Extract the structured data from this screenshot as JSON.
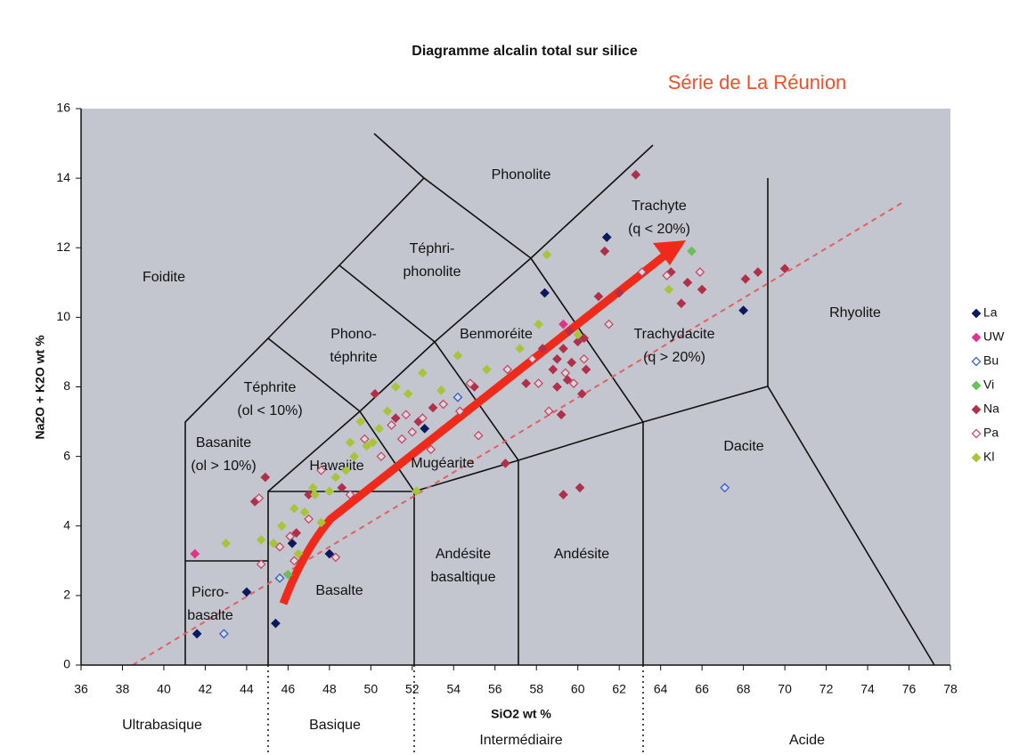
{
  "chart_data": {
    "type": "scatter",
    "title": "Diagramme alcalin total sur silice",
    "subtitle": "Série de La Réunion",
    "x_label": "SiO2 wt %",
    "y_label": "Na2O + K2O wt %",
    "xlim": [
      36,
      78
    ],
    "ylim": [
      0,
      16
    ],
    "xticks": [
      36,
      38,
      40,
      42,
      44,
      46,
      48,
      50,
      52,
      54,
      56,
      58,
      60,
      62,
      64,
      66,
      68,
      70,
      72,
      74,
      76,
      78
    ],
    "yticks": [
      0,
      2,
      4,
      6,
      8,
      10,
      12,
      14,
      16
    ],
    "grid": false,
    "legend": "right",
    "region_labels": [
      [
        "Foidite"
      ],
      [
        "Téphri-",
        "phonolite"
      ],
      [
        "Phonolite"
      ],
      [
        "Trachyte",
        "(q < 20%)"
      ],
      [
        "Phono-",
        "téphrite"
      ],
      [
        "Benmoréite"
      ],
      [
        "Trachydacite",
        "(q > 20%)"
      ],
      [
        "Rhyolite"
      ],
      [
        "Téphrite",
        "(ol < 10%)"
      ],
      [
        "Basanite",
        "(ol > 10%)"
      ],
      [
        "Hawaiite"
      ],
      [
        "Mugéarite"
      ],
      [
        "Dacite"
      ],
      [
        "Andésite",
        "basaltique"
      ],
      [
        "Andésite"
      ],
      [
        "Basalte"
      ],
      [
        "Picro-",
        "basalte"
      ]
    ],
    "class_labels": [
      "Ultrabasique",
      "Basique",
      "Intermédiaire",
      "Acide"
    ],
    "series": [
      {
        "name": "La",
        "color": "#0b1a5c",
        "filled": true,
        "x": [
          41.6,
          44,
          45.4,
          46.2,
          48,
          52.6,
          58.4,
          61.4,
          68
        ],
        "values": [
          0.9,
          2.1,
          1.2,
          3.5,
          3.2,
          6.8,
          10.7,
          12.3,
          10.2
        ]
      },
      {
        "name": "UW",
        "color": "#e0338a",
        "filled": true,
        "x": [
          41.5,
          59.3
        ],
        "values": [
          3.2,
          9.8
        ]
      },
      {
        "name": "Bu",
        "color": "#2a56c8",
        "filled": false,
        "x": [
          42.9,
          45.6,
          54.2,
          67.1
        ],
        "values": [
          0.9,
          2.5,
          7.7,
          5.1
        ]
      },
      {
        "name": "Vi",
        "color": "#6bbf59",
        "filled": true,
        "x": [
          65.5,
          46
        ],
        "values": [
          11.9,
          2.6
        ]
      },
      {
        "name": "Na",
        "color": "#b0304a",
        "filled": true,
        "x": [
          44.4,
          44.9,
          46.4,
          47,
          48.6,
          50.2,
          51.2,
          52.3,
          53,
          55,
          57.5,
          58.3,
          58.8,
          59,
          59.3,
          59.5,
          59.7,
          60,
          60.2,
          60.4,
          59,
          59.6,
          61,
          62,
          64.5,
          65,
          65.3,
          66,
          68.1,
          68.7,
          70,
          62.8,
          61.3,
          60.3,
          59.2,
          59.3,
          60.1,
          56.5
        ],
        "values": [
          4.7,
          5.4,
          3.8,
          4.9,
          5.1,
          7.8,
          7.1,
          7,
          7.4,
          8,
          8.1,
          9.1,
          8.5,
          8.8,
          9.1,
          8.2,
          8.7,
          9.3,
          7.8,
          8.5,
          8,
          9.6,
          10.6,
          10.7,
          11.3,
          10.4,
          11,
          10.8,
          11.1,
          11.3,
          11.4,
          14.1,
          11.9,
          9.4,
          7.2,
          4.9,
          5.1,
          5.8
        ]
      },
      {
        "name": "Pa",
        "color": "#c8405c",
        "filled": false,
        "x": [
          44.6,
          44.7,
          45.6,
          46.1,
          46.3,
          47,
          48.3,
          49,
          49.7,
          50.5,
          51,
          51.5,
          52,
          52.5,
          52.9,
          53.5,
          54.3,
          54.8,
          56.6,
          57.8,
          58.1,
          58.6,
          59.4,
          59.8,
          60.3,
          61.5,
          63.1,
          64.3,
          65.9,
          55.2,
          51.7,
          47.6
        ],
        "values": [
          4.8,
          2.9,
          3.4,
          3.7,
          3,
          4.2,
          3.1,
          4.9,
          6.5,
          6,
          6.9,
          6.5,
          6.7,
          7.1,
          6.2,
          7.5,
          7.3,
          8.1,
          8.5,
          8.8,
          8.1,
          7.3,
          8.4,
          8.1,
          8.8,
          9.8,
          11.3,
          11.2,
          11.3,
          6.6,
          7.2,
          5.6
        ]
      },
      {
        "name": "Kl",
        "color": "#a8c43a",
        "filled": true,
        "x": [
          43,
          44.7,
          45.3,
          45.7,
          46.3,
          46.8,
          47.2,
          47.6,
          48,
          48.3,
          48.8,
          49.2,
          49.5,
          49.8,
          50.1,
          50.4,
          50.8,
          51.2,
          51.8,
          52.5,
          53.4,
          54.2,
          55.6,
          57.2,
          58.1,
          58.5,
          60,
          64.4,
          46.5,
          47.3,
          49,
          52.2
        ],
        "values": [
          3.5,
          3.6,
          3.5,
          4,
          4.5,
          4.4,
          5.1,
          4.1,
          5,
          5.4,
          5.6,
          6,
          7,
          6.3,
          6.4,
          6.8,
          7.3,
          8,
          7.8,
          8.4,
          7.9,
          8.9,
          8.5,
          9.1,
          9.8,
          11.8,
          9.5,
          10.8,
          3.2,
          4.9,
          6.4,
          5
        ]
      }
    ]
  }
}
